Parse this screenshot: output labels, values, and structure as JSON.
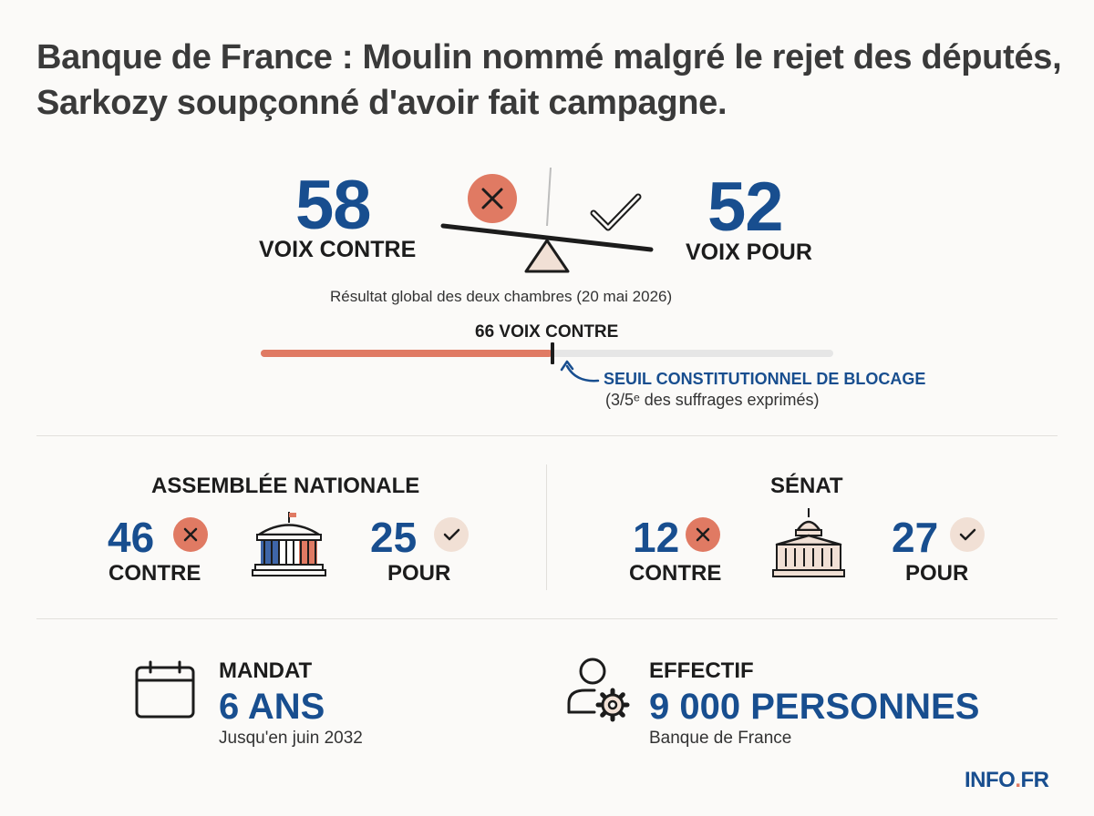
{
  "title": "Banque de France : Moulin nommé malgré le rejet des députés, Sarkozy soupçonné d'avoir fait campagne.",
  "colors": {
    "accent_blue": "#184e8f",
    "against_red": "#e07a63",
    "for_beige": "#f1e0d5",
    "track_grey": "#e6e6e6"
  },
  "global": {
    "contre_value": "58",
    "contre_label": "VOIX CONTRE",
    "pour_value": "52",
    "pour_label": "VOIX POUR",
    "caption": "Résultat global des deux chambres (20 mai 2026)"
  },
  "threshold": {
    "label": "66 VOIX CONTRE",
    "progress": 0.51,
    "title": "SEUIL CONSTITUTIONNEL DE BLOCAGE",
    "note": "(3/5ᵉ des suffrages exprimés)"
  },
  "assemblee": {
    "title": "ASSEMBLÉE NATIONALE",
    "contre_value": "46",
    "contre_label": "CONTRE",
    "pour_value": "25",
    "pour_label": "POUR"
  },
  "senat": {
    "title": "SÉNAT",
    "contre_value": "12",
    "contre_label": "CONTRE",
    "pour_value": "27",
    "pour_label": "POUR"
  },
  "mandat": {
    "label": "MANDAT",
    "value": "6 ANS",
    "sub": "Jusqu'en juin 2032",
    "icon": "calendar-icon"
  },
  "effectif": {
    "label": "EFFECTIF",
    "value": "9 000 PERSONNES",
    "sub": "Banque de France",
    "icon": "user-gear-icon"
  },
  "logo": {
    "main": "INFO",
    "dot": ".",
    "tld": "FR"
  }
}
